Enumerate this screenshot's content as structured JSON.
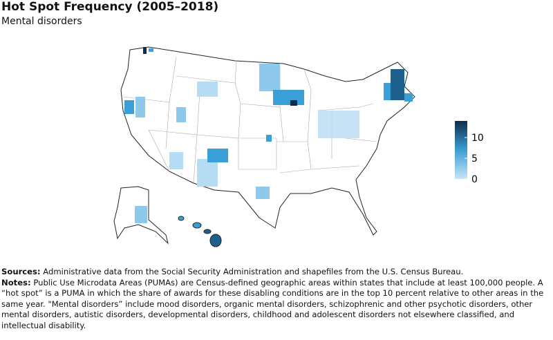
{
  "header": {
    "title": "Hot Spot Frequency (2005–2018)",
    "subtitle": "Mental disorders"
  },
  "legend": {
    "lim": [
      0,
      14
    ],
    "ticks": [
      0,
      5,
      10
    ],
    "colors": [
      "#c8e4f6",
      "#3a9fd6",
      "#0d2d4a"
    ]
  },
  "footer": {
    "sources_label": "Sources:",
    "sources": "Administrative data from the Social Security Administration and shapefiles from the U.S. Census Bureau.",
    "notes_label": "Notes:",
    "notes": "Public Use Microdata Areas (PUMAs) are Census-defined geographic areas within states that include at least 100,000 people. A “hot spot” is a PUMA in which the share of awards for these disabling conditions are in the top 10 percent relative to other areas in the same year. \"Mental disorders” include mood disorders, organic mental disorders, schizophrenic and other psychotic disorders, other mental disorders, autistic disorders, developmental disorders, childhood and adolescent disorders not elsewhere classified, and intellectual disability."
  }
}
